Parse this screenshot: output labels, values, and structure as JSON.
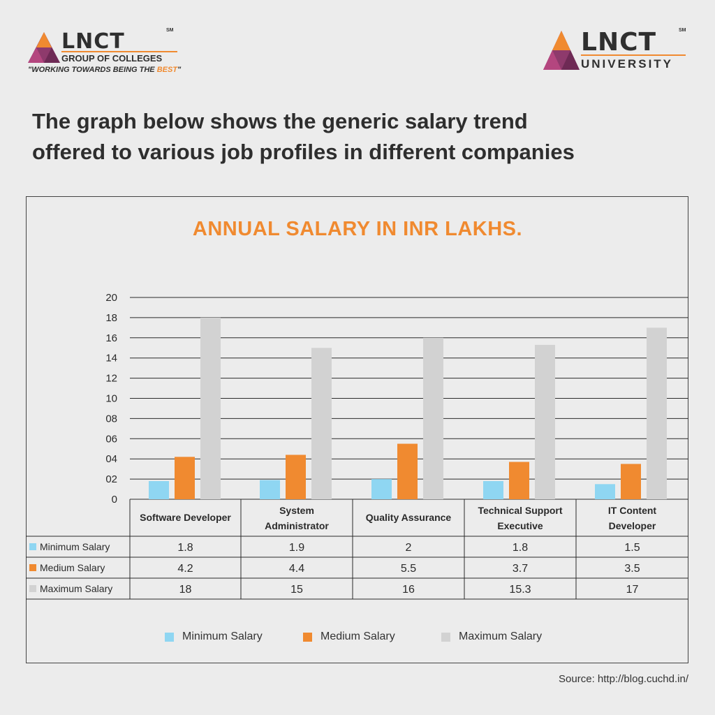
{
  "logos": {
    "left": {
      "brand": "LNCT",
      "sm": "SM",
      "line1": "GROUP OF COLLEGES",
      "tagline_main": "\"WORKING TOWARDS BEING THE ",
      "tagline_best": "BEST",
      "tagline_end": "\""
    },
    "right": {
      "brand": "LNCT",
      "sm": "SM",
      "line1": "UNIVERSITY"
    }
  },
  "headline": {
    "line1": "The graph below shows the generic salary trend",
    "line2": "offered to various job profiles in different companies"
  },
  "colors": {
    "minimum": "#8fd6f2",
    "medium": "#f08a30",
    "maximum": "#d2d2d2",
    "accent": "#f08a30"
  },
  "chart_data": {
    "type": "bar",
    "title": "ANNUAL SALARY IN INR LAKHS.",
    "categories": [
      [
        "Software Developer"
      ],
      [
        "System",
        "Administrator"
      ],
      [
        "Quality Assurance"
      ],
      [
        "Technical Support",
        "Executive"
      ],
      [
        "IT Content",
        "Developer"
      ]
    ],
    "series": [
      {
        "name": "Minimum Salary",
        "values": [
          1.8,
          1.9,
          2,
          1.8,
          1.5
        ],
        "display": [
          "1.8",
          "1.9",
          "2",
          "1.8",
          "1.5"
        ]
      },
      {
        "name": "Medium Salary",
        "values": [
          4.2,
          4.4,
          5.5,
          3.7,
          3.5
        ],
        "display": [
          "4.2",
          "4.4",
          "5.5",
          "3.7",
          "3.5"
        ]
      },
      {
        "name": "Maximum Salary",
        "values": [
          18,
          15,
          16,
          15.3,
          17
        ],
        "display": [
          "18",
          "15",
          "16",
          "15.3",
          "17"
        ]
      }
    ],
    "yticks": [
      "0",
      "02",
      "04",
      "06",
      "08",
      "10",
      "12",
      "14",
      "16",
      "18",
      "20"
    ],
    "ylim": [
      0,
      20
    ],
    "grid": true,
    "legend_position": "bottom"
  },
  "source": "Source: http://blog.cuchd.in/"
}
